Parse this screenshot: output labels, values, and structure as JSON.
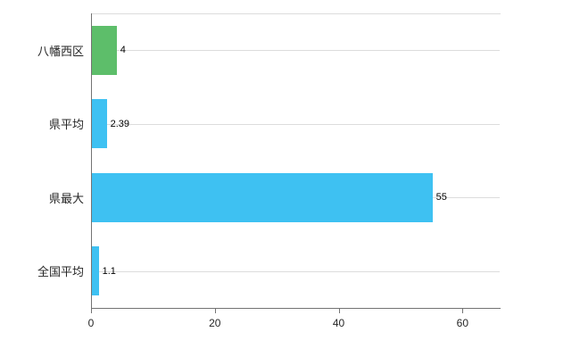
{
  "chart_data": {
    "type": "bar",
    "orientation": "horizontal",
    "title": "",
    "xlabel": "",
    "ylabel": "",
    "categories": [
      "八幡西区",
      "県平均",
      "県最大",
      "全国平均"
    ],
    "values": [
      4,
      2.39,
      55,
      1.1
    ],
    "value_labels": [
      "4",
      "2.39",
      "55",
      "1.1"
    ],
    "bar_colors": [
      "#5DBE6A",
      "#3EC1F2",
      "#3EC1F2",
      "#3EC1F2"
    ],
    "xlim": [
      0,
      66
    ],
    "x_ticks": [
      0,
      20,
      40,
      60
    ],
    "grid": "horizontal-gridlines",
    "legend_position": "none",
    "axis_color": "#737373",
    "gridline_color": "#dcdcdc"
  }
}
